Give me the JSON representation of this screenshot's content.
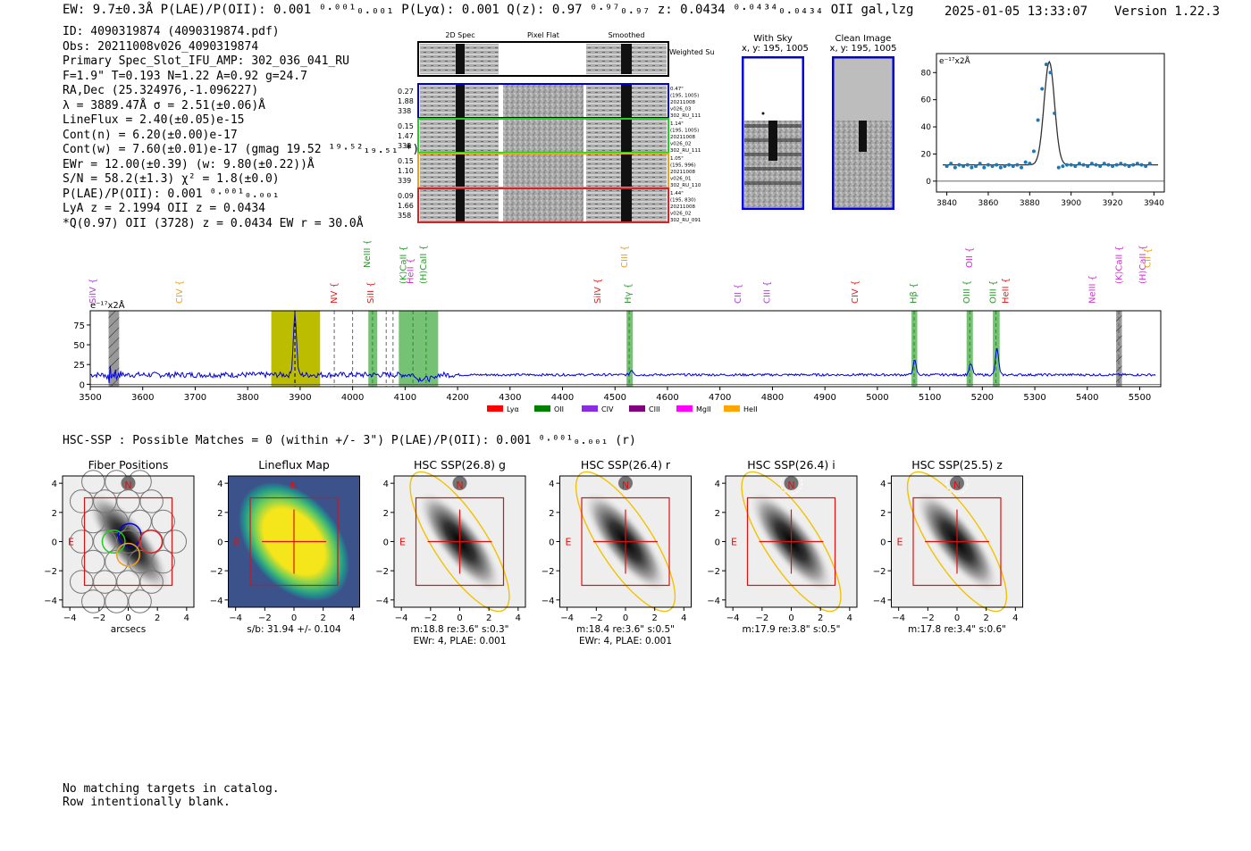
{
  "header": {
    "summary": "EW: 9.7±0.3Å  P(LAE)/P(OII): 0.001 ⁰·⁰⁰¹₀.₀₀₁  P(Lyα): 0.001  Q(z): 0.97 ⁰·⁹⁷₀.₉₇  z: 0.0434 ⁰·⁰⁴³⁴₀.₀₄₃₄ OII   gal,lzg",
    "timestamp": "2025-01-05 13:33:07",
    "version": "Version 1.22.3"
  },
  "info_lines": [
    "ID: 4090319874 (4090319874.pdf)",
    "Obs: 20211008v026_4090319874",
    "Primary Spec_Slot_IFU_AMP: 302_036_041_RU",
    "F=1.9\"  T=0.193  N=1.22  A=0.92  g=24.7",
    "RA,Dec (25.324976,-1.096227)",
    "λ = 3889.47Å  σ = 2.51(±0.06)Å",
    "LineFlux = 2.40(±0.05)e-15",
    "Cont(n) = 6.20(±0.00)e-17",
    "Cont(w) = 7.60(±0.01)e-17 (gmag 19.52 ¹⁹·⁵²₁₉.₅₁ *)",
    "EWr = 12.00(±0.39) (w: 9.80(±0.22))Å",
    "S/N = 58.2(±1.3)  χ² = 1.8(±0.0)",
    "P(LAE)/P(OII): 0.001 ⁰·⁰⁰¹₀.₀₀₁",
    "LyA z = 2.1994  OII z = 0.0434",
    "*Q(0.97) OII (3728) z = 0.0434  EW r = 30.0Å"
  ],
  "cutouts": {
    "col_titles": [
      "2D Spec",
      "Pixel Flat",
      "Smoothed"
    ],
    "weighted_sum_label": "Weighted Sum",
    "rows": [
      {
        "left": [
          "0.27",
          "1.88",
          "338"
        ],
        "right": [
          "0.47\"",
          "(195, 1005)",
          "20211008",
          "v026_03",
          "302_RU_111"
        ],
        "color": "#0000cc"
      },
      {
        "left": [
          "0.15",
          "1.47",
          "338"
        ],
        "right": [
          "1.14\"",
          "(195, 1005)",
          "20211008",
          "v026_02",
          "302_RU_111"
        ],
        "color": "#22cc22"
      },
      {
        "left": [
          "0.15",
          "1.10",
          "339"
        ],
        "right": [
          "1.05\"",
          "(195, 996)",
          "20211008",
          "v026_01",
          "302_RU_110"
        ],
        "color": "#f0a020"
      },
      {
        "left": [
          "0.09",
          "1.66",
          "358"
        ],
        "right": [
          "1.44\"",
          "(195, 830)",
          "20211008",
          "v026_02",
          "302_RU_091"
        ],
        "color": "#e02020"
      }
    ]
  },
  "sky_panels": {
    "with_sky": {
      "title": "With Sky",
      "coords": "x, y: 195, 1005"
    },
    "clean": {
      "title": "Clean Image",
      "coords": "x, y: 195, 1005"
    }
  },
  "chart_data": [
    {
      "type": "scatter",
      "title": "",
      "unit_label": "e⁻¹⁷x2Å",
      "xlabel": "",
      "ylabel": "",
      "xlim": [
        3835,
        3945
      ],
      "ylim": [
        -8,
        94
      ],
      "xticks": [
        3840,
        3860,
        3880,
        3900,
        3920,
        3940
      ],
      "yticks": [
        0,
        20,
        40,
        60,
        80
      ],
      "points": [
        [
          3840,
          11
        ],
        [
          3842,
          13
        ],
        [
          3844,
          10
        ],
        [
          3846,
          12
        ],
        [
          3848,
          11
        ],
        [
          3850,
          12
        ],
        [
          3852,
          10
        ],
        [
          3854,
          11
        ],
        [
          3856,
          13
        ],
        [
          3858,
          10
        ],
        [
          3860,
          12
        ],
        [
          3862,
          11
        ],
        [
          3864,
          12
        ],
        [
          3866,
          10
        ],
        [
          3868,
          11
        ],
        [
          3870,
          12
        ],
        [
          3872,
          11
        ],
        [
          3874,
          12
        ],
        [
          3876,
          10
        ],
        [
          3878,
          14
        ],
        [
          3880,
          13
        ],
        [
          3882,
          22
        ],
        [
          3884,
          45
        ],
        [
          3886,
          68
        ],
        [
          3888,
          86
        ],
        [
          3890,
          80
        ],
        [
          3892,
          50
        ],
        [
          3894,
          10
        ],
        [
          3896,
          11
        ],
        [
          3898,
          12
        ],
        [
          3900,
          12
        ],
        [
          3902,
          11
        ],
        [
          3904,
          13
        ],
        [
          3906,
          12
        ],
        [
          3908,
          11
        ],
        [
          3910,
          13
        ],
        [
          3912,
          12
        ],
        [
          3914,
          11
        ],
        [
          3916,
          13
        ],
        [
          3918,
          12
        ],
        [
          3920,
          11
        ],
        [
          3922,
          12
        ],
        [
          3924,
          13
        ],
        [
          3926,
          12
        ],
        [
          3928,
          11
        ],
        [
          3930,
          12
        ],
        [
          3932,
          13
        ],
        [
          3934,
          12
        ],
        [
          3936,
          11
        ],
        [
          3938,
          13
        ]
      ],
      "fit": {
        "center": 3889.47,
        "sigma": 2.51,
        "amplitude": 76,
        "continuum": 12
      }
    },
    {
      "type": "line",
      "title": "",
      "unit_label": "e⁻¹⁷x2Å",
      "xlim": [
        3500,
        5540
      ],
      "ylim": [
        -3,
        93
      ],
      "xticks": [
        3500,
        3600,
        3700,
        3800,
        3900,
        4000,
        4100,
        4200,
        4300,
        4400,
        4500,
        4600,
        4700,
        4800,
        4900,
        5000,
        5100,
        5200,
        5300,
        5400,
        5500
      ],
      "yticks": [
        0,
        25,
        50,
        75
      ],
      "baseline": 12,
      "peaks": [
        {
          "x": 3890,
          "h": 78,
          "w": 3
        },
        {
          "x": 4532,
          "h": 6,
          "w": 3
        },
        {
          "x": 5071,
          "h": 18,
          "w": 3
        },
        {
          "x": 5178,
          "h": 14,
          "w": 3
        },
        {
          "x": 5228,
          "h": 33,
          "w": 3
        }
      ],
      "hatched_bands": [
        [
          3535,
          3555
        ],
        [
          5455,
          5466
        ]
      ],
      "yellow_band": [
        3845,
        3938
      ],
      "green_bands": [
        [
          4030,
          4047
        ],
        [
          4088,
          4118
        ],
        [
          4118,
          4163
        ],
        [
          4522,
          4534
        ],
        [
          5065,
          5076
        ],
        [
          5170,
          5182
        ],
        [
          5220,
          5233
        ]
      ],
      "dashed_lines": [
        [
          3890,
          "#000000"
        ],
        [
          3965,
          "#666666"
        ],
        [
          4000,
          "#666666"
        ],
        [
          4038,
          "#2a8a2a"
        ],
        [
          4064,
          "#666666"
        ],
        [
          4077,
          "#666666"
        ],
        [
          4115,
          "#2a8a2a"
        ],
        [
          4140,
          "#2a8a2a"
        ],
        [
          4527,
          "#2a8a2a"
        ],
        [
          5070,
          "#2a8a2a"
        ],
        [
          5176,
          "#2a8a2a"
        ],
        [
          5226,
          "#2a8a2a"
        ],
        [
          5460,
          "#666666"
        ]
      ],
      "line_labels": [
        {
          "text": "SiIV",
          "x": 3510,
          "color": "#aa44cc",
          "level": 0
        },
        {
          "text": "CIV",
          "x": 3675,
          "color": "#e8a020",
          "level": 0
        },
        {
          "text": "NV",
          "x": 3970,
          "color": "#e02020",
          "level": 0
        },
        {
          "text": "NeIII",
          "x": 4033,
          "color": "#2a9a2a",
          "level": 2
        },
        {
          "text": "SiII",
          "x": 4040,
          "color": "#e02020",
          "level": 0
        },
        {
          "text": "(K)CaII",
          "x": 4102,
          "color": "#2a9a2a",
          "level": 1
        },
        {
          "text": "HeII",
          "x": 4116,
          "color": "#cc33cc",
          "level": 1
        },
        {
          "text": "(H)CaII",
          "x": 4140,
          "color": "#2a9a2a",
          "level": 1
        },
        {
          "text": "SiIV",
          "x": 4472,
          "color": "#e02020",
          "level": 0
        },
        {
          "text": "CIII",
          "x": 4523,
          "color": "#e8a020",
          "level": 2
        },
        {
          "text": "Hγ",
          "x": 4530,
          "color": "#2a9a2a",
          "level": 0
        },
        {
          "text": "CII",
          "x": 4740,
          "color": "#aa44cc",
          "level": 0
        },
        {
          "text": "CIII",
          "x": 4795,
          "color": "#aa44cc",
          "level": 0
        },
        {
          "text": "CIV",
          "x": 4963,
          "color": "#e02020",
          "level": 0
        },
        {
          "text": "Hβ",
          "x": 5074,
          "color": "#2a9a2a",
          "level": 0
        },
        {
          "text": "OII",
          "x": 5181,
          "color": "#e020e0",
          "level": 2
        },
        {
          "text": "OIII",
          "x": 5176,
          "color": "#2a9a2a",
          "level": 0
        },
        {
          "text": "OIII",
          "x": 5226,
          "color": "#2a9a2a",
          "level": 0
        },
        {
          "text": "HeII",
          "x": 5250,
          "color": "#e02020",
          "level": 0
        },
        {
          "text": "NeIII",
          "x": 5415,
          "color": "#cc33cc",
          "level": 0
        },
        {
          "text": "(K)CaII",
          "x": 5466,
          "color": "#cc33cc",
          "level": 1
        },
        {
          "text": "(H)CaII",
          "x": 5511,
          "color": "#cc33cc",
          "level": 1
        },
        {
          "text": "CII",
          "x": 5520,
          "color": "#e8a020",
          "level": 2
        }
      ],
      "legend": [
        {
          "label": "Lyα",
          "color": "#ff0000"
        },
        {
          "label": "OII",
          "color": "#008000"
        },
        {
          "label": "CIV",
          "color": "#8a2be2"
        },
        {
          "label": "CIII",
          "color": "#800080"
        },
        {
          "label": "MgII",
          "color": "#ff00ff"
        },
        {
          "label": "HeII",
          "color": "#ffa500"
        }
      ]
    }
  ],
  "hsc": {
    "title_line": "HSC-SSP : Possible Matches = 0 (within +/- 3\")  P(LAE)/P(OII): 0.001 ⁰·⁰⁰¹₀.₀₀₁ (r)",
    "ticks": [
      "−4",
      "−2",
      "0",
      "2",
      "4"
    ],
    "n_label": "N",
    "e_label": "E",
    "panels": [
      {
        "title": "Fiber Positions",
        "caption1": "arcsecs",
        "caption2": ""
      },
      {
        "title": "Lineflux Map",
        "caption1": "s/b: 31.94 +/- 0.104",
        "caption2": ""
      },
      {
        "title": "HSC SSP(26.8) g",
        "caption1": "m:18.8  re:3.6\"  s:0.3\"",
        "caption2": "EWr: 4, PLAE: 0.001"
      },
      {
        "title": "HSC SSP(26.4) r",
        "caption1": "m:18.4  re:3.6\"  s:0.5\"",
        "caption2": "EWr: 4, PLAE: 0.001"
      },
      {
        "title": "HSC SSP(26.4) i",
        "caption1": "m:17.9  re:3.8\"  s:0.5\"",
        "caption2": ""
      },
      {
        "title": "HSC SSP(25.5) z",
        "caption1": "m:17.8  re:3.4\"  s:0.6\"",
        "caption2": ""
      }
    ]
  },
  "footer": {
    "line1": "No matching targets in catalog.",
    "line2": "Row intentionally blank."
  }
}
